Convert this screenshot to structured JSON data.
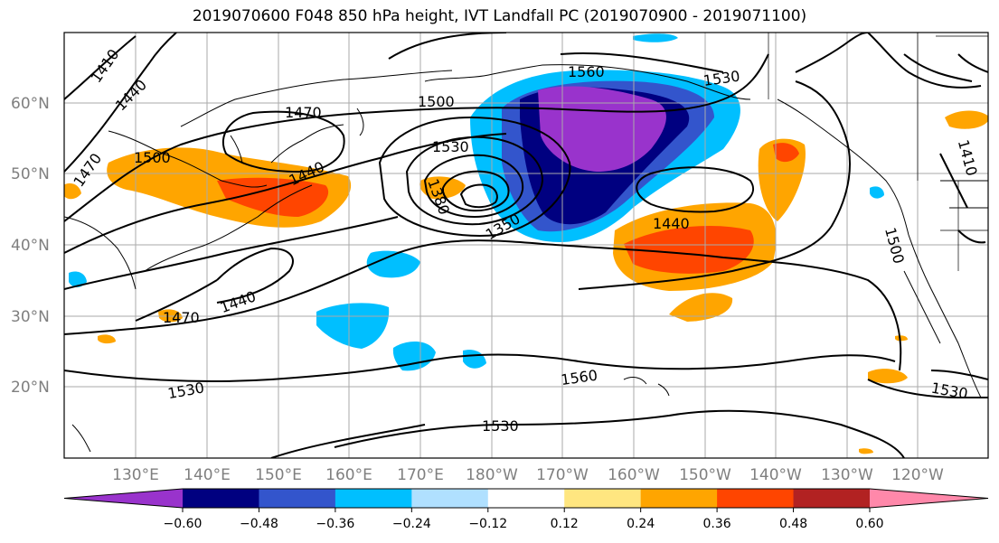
{
  "title": "2019070600 F048 850 hPa height, IVT Landfall PC (2019070900 - 2019071100)",
  "lat_labels": [
    "60°N",
    "50°N",
    "40°N",
    "30°N",
    "20°N"
  ],
  "lon_labels": [
    "130°E",
    "140°E",
    "150°E",
    "160°E",
    "170°E",
    "180°W",
    "170°W",
    "160°W",
    "150°W",
    "140°W",
    "130°W",
    "120°W"
  ],
  "contour_labels": [
    "1410",
    "1440",
    "1470",
    "1500",
    "1530",
    "1560",
    "1350",
    "1380",
    "1440",
    "1470",
    "1500",
    "1530",
    "1560",
    "1440",
    "1470",
    "1530",
    "1530",
    "1530",
    "1500",
    "1440",
    "1410"
  ],
  "colorbar": {
    "colors": [
      "#9933cc",
      "#000080",
      "#3355cc",
      "#00bfff",
      "#b0e0ff",
      "#ffffff",
      "#ffe680",
      "#ffa500",
      "#ff4500",
      "#b22222",
      "#ff88aa"
    ],
    "tick_labels": [
      "−0.60",
      "−0.48",
      "−0.36",
      "−0.24",
      "−0.12",
      "0.12",
      "0.24",
      "0.36",
      "0.48",
      "0.60"
    ]
  }
}
